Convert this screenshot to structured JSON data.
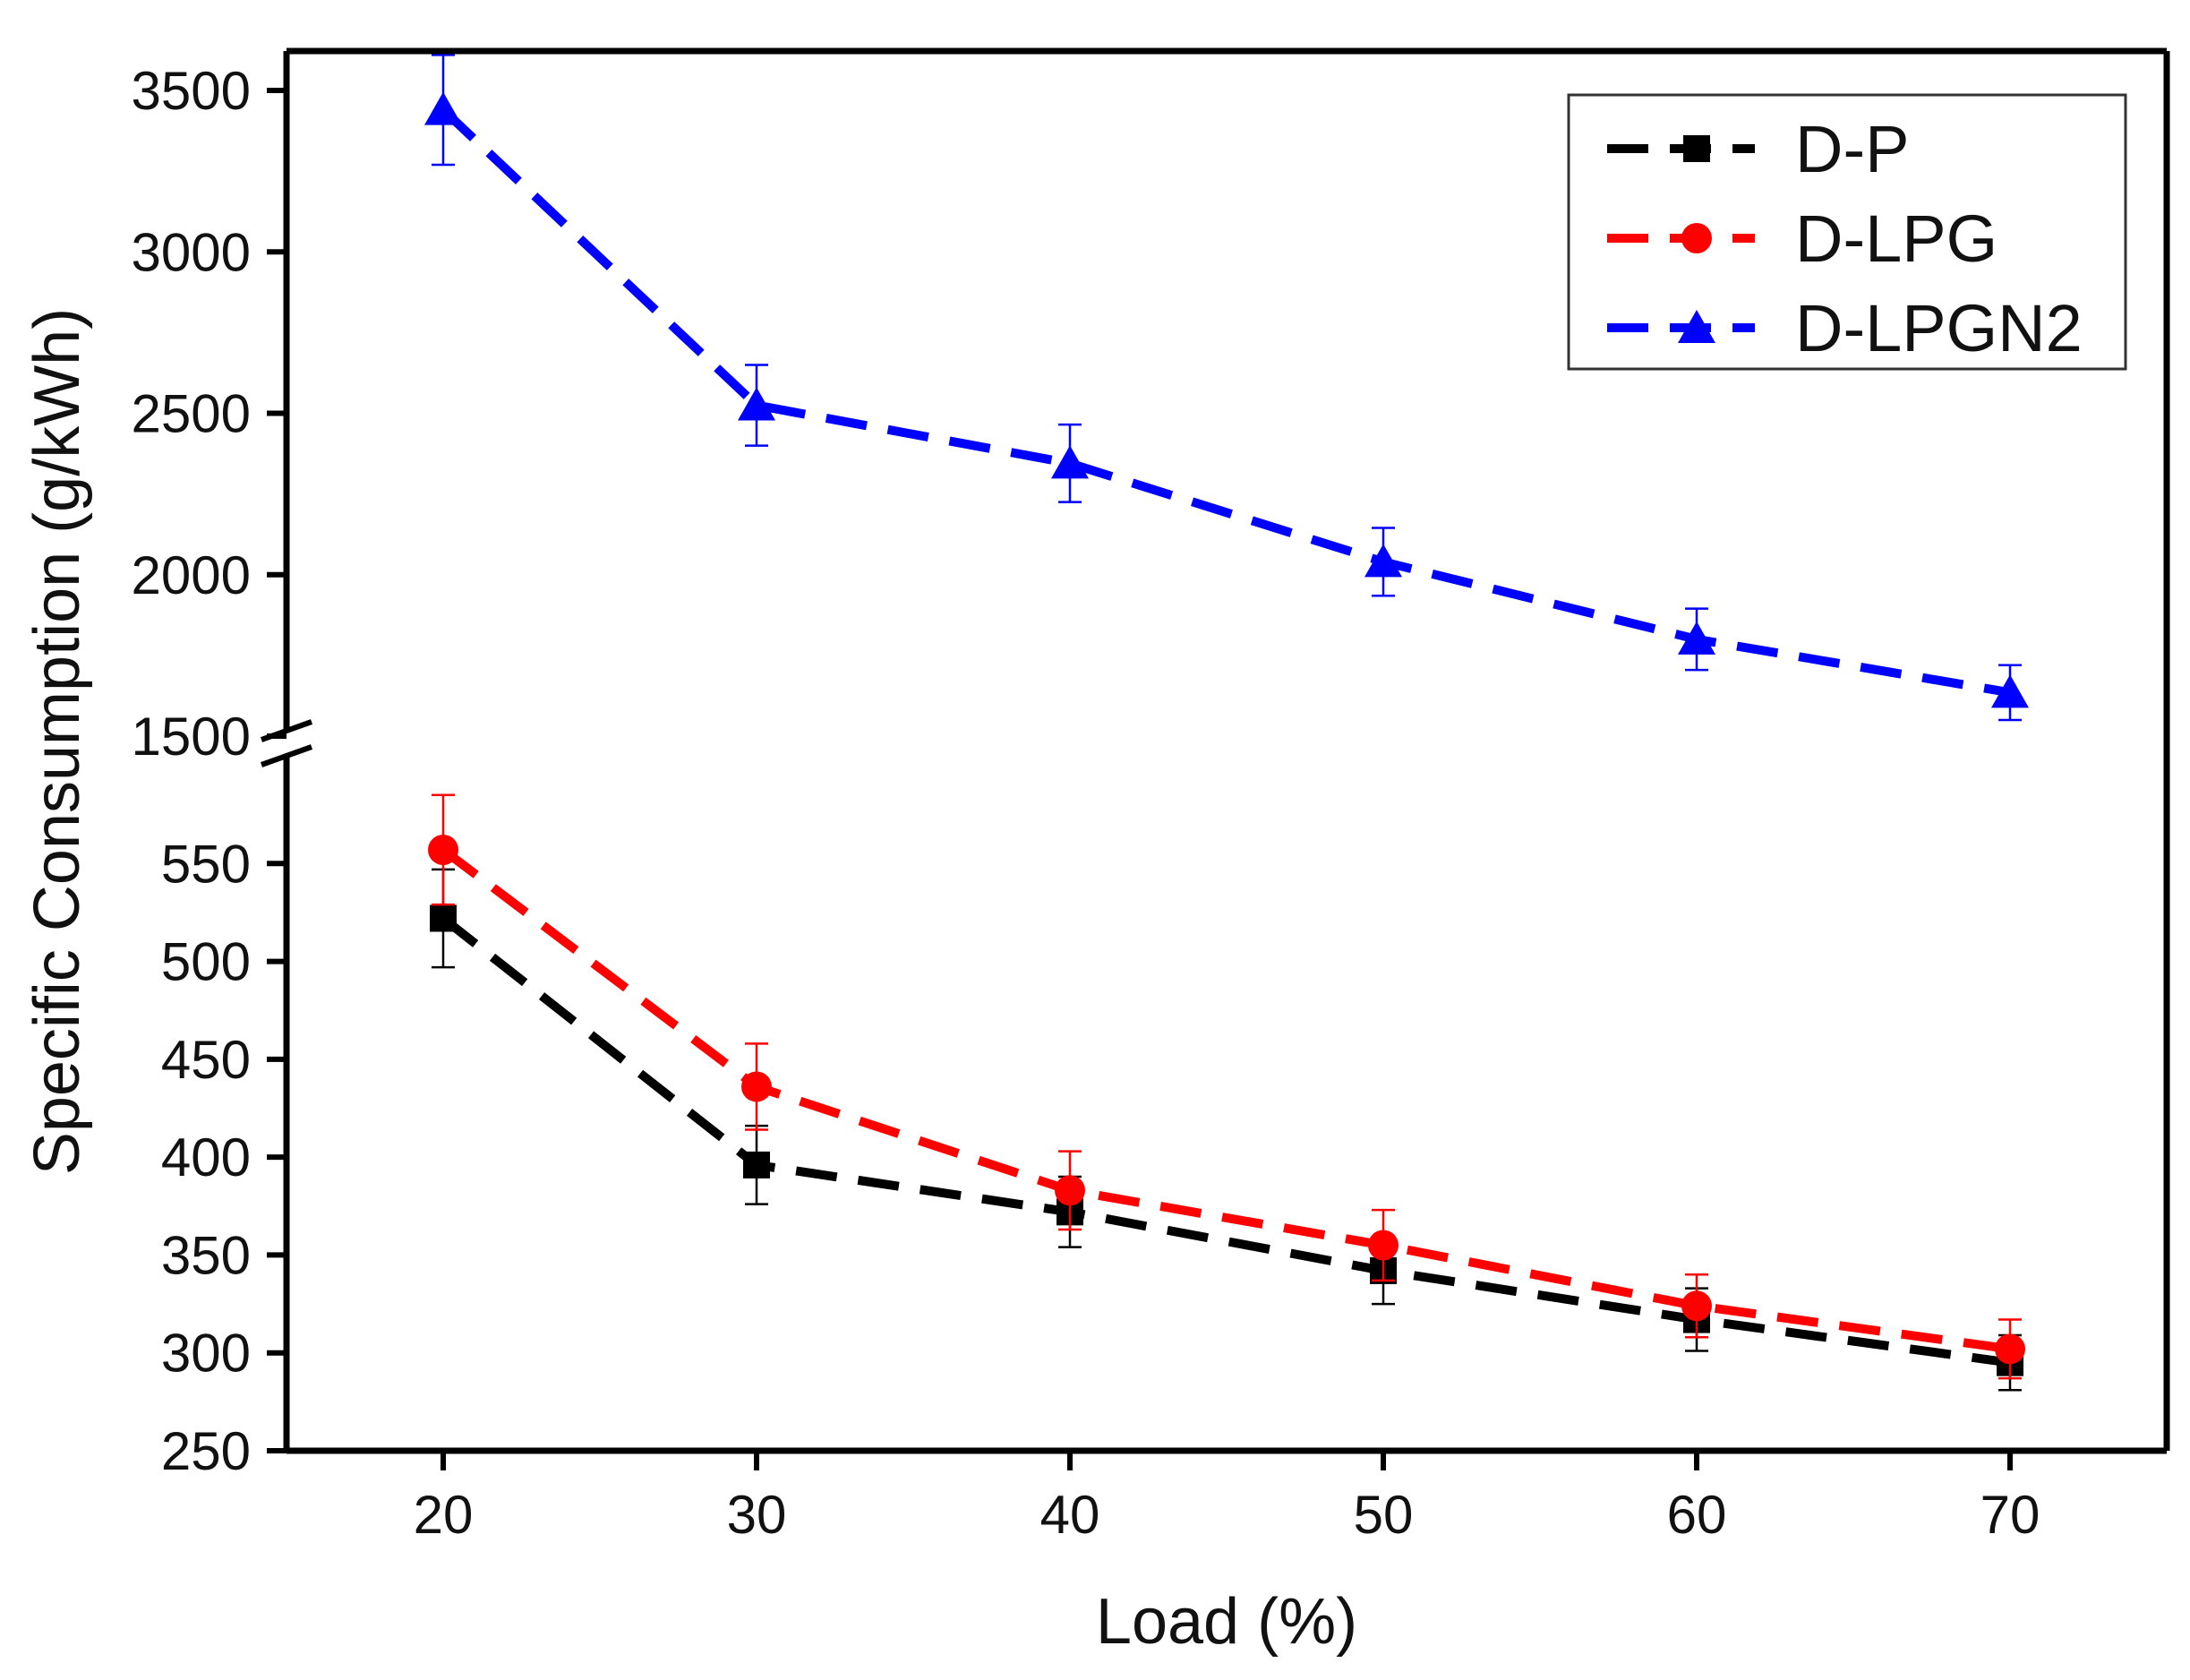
{
  "chart_data": {
    "type": "line",
    "title": "",
    "xlabel": "Load (%)",
    "ylabel": "Specific Consumption (g/kWh)",
    "x": [
      20,
      30,
      40,
      50,
      60,
      70
    ],
    "x_ticks": [
      "20",
      "30",
      "40",
      "50",
      "60",
      "70"
    ],
    "xlim": [
      15,
      75
    ],
    "y_break": true,
    "y_lower_range": [
      250,
      600
    ],
    "y_lower_ticks": [
      "250",
      "300",
      "350",
      "400",
      "450",
      "500",
      "550"
    ],
    "y_upper_range": [
      1500,
      3600
    ],
    "y_upper_ticks": [
      "1500",
      "2000",
      "2500",
      "3000",
      "3500"
    ],
    "legend_position": "top-right",
    "grid": false,
    "series": [
      {
        "name": "D-P",
        "color": "#000000",
        "marker": "square",
        "values": [
          522,
          396,
          372,
          342,
          317,
          295
        ],
        "errors": [
          25,
          20,
          18,
          17,
          16,
          14
        ]
      },
      {
        "name": "D-LPG",
        "color": "#ff0000",
        "marker": "circle",
        "values": [
          557,
          436,
          383,
          355,
          324,
          302
        ],
        "errors": [
          28,
          22,
          20,
          18,
          16,
          15
        ]
      },
      {
        "name": "D-LPGN2",
        "color": "#0000ff",
        "marker": "triangle",
        "values": [
          3440,
          2525,
          2345,
          2040,
          1800,
          1635
        ],
        "errors": [
          170,
          125,
          120,
          105,
          95,
          85
        ]
      }
    ]
  }
}
